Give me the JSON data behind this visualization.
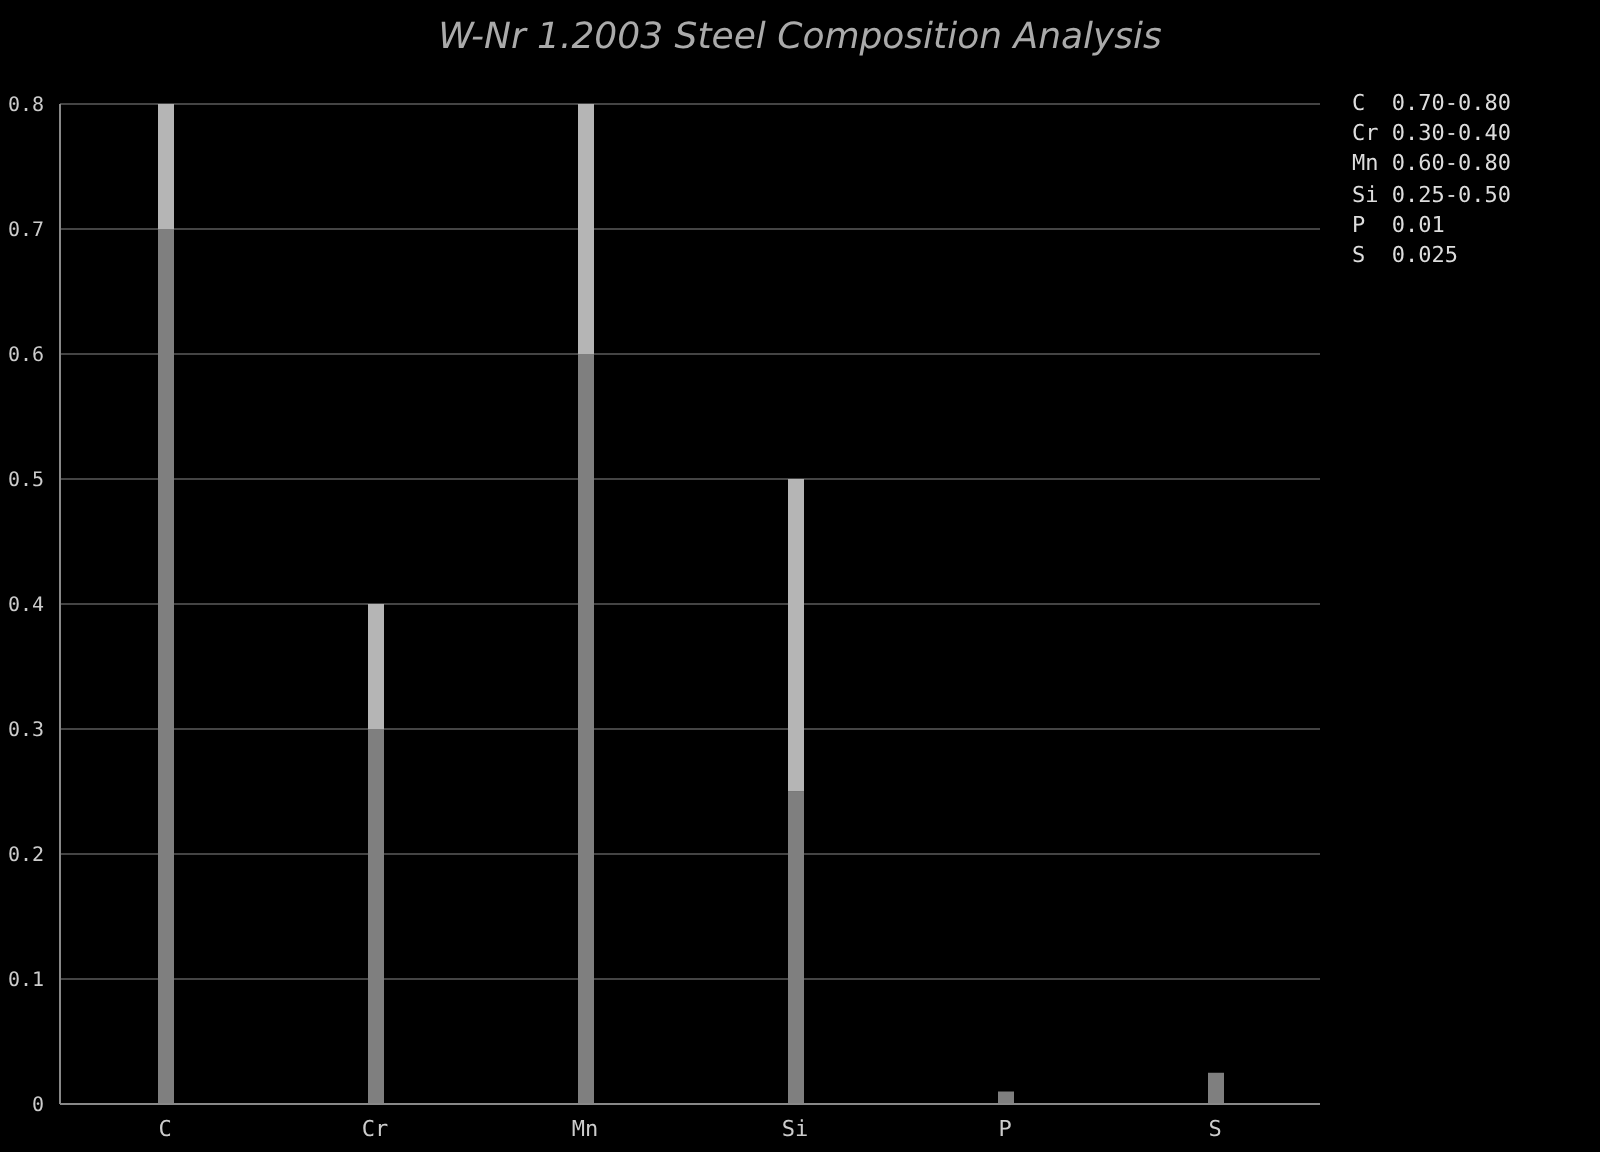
{
  "chart_data": {
    "type": "bar",
    "title": "W-Nr 1.2003 Steel Composition Analysis",
    "categories": [
      "C",
      "Cr",
      "Mn",
      "Si",
      "P",
      "S"
    ],
    "stacked": true,
    "series": [
      {
        "color": "#7f7f7f",
        "values": [
          0.7,
          0.3,
          0.6,
          0.25,
          0.01,
          0.025
        ]
      },
      {
        "color": "#b5b5b5",
        "values": [
          0.1,
          0.1,
          0.2,
          0.25,
          null,
          null
        ]
      }
    ],
    "ylim": [
      0,
      0.8
    ],
    "yticks": [
      0,
      0.1,
      0.2,
      0.3,
      0.4,
      0.5,
      0.6,
      0.7,
      0.8
    ],
    "grid": "y",
    "annotations": [
      "C  0.70-0.80",
      "Cr 0.30-0.40",
      "Mn 0.60-0.80",
      "Si 0.25-0.50",
      "P  0.01",
      "S  0.025"
    ]
  }
}
